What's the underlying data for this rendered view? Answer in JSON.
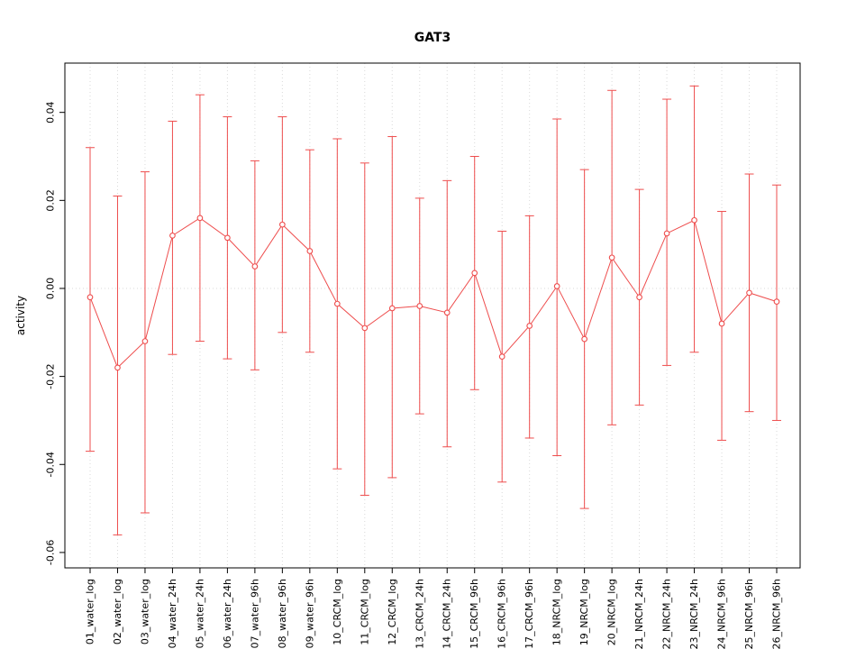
{
  "page": {
    "title": "GAT3"
  },
  "chart_data": {
    "type": "line",
    "title": "GAT3",
    "xlabel": "",
    "ylabel": "activity",
    "legend": "none",
    "point_style": "open-circle",
    "error_bars": true,
    "grid": {
      "vertical": "dotted line at every category",
      "horizontal": "dotted line at y=0"
    },
    "colors": {
      "series": "#ee4d4d",
      "grid": "#d9d9d9",
      "axis": "#000000",
      "background": "#ffffff"
    },
    "y_min": -0.0635,
    "y_max": 0.0512,
    "yticks": [
      -0.06,
      -0.04,
      -0.02,
      0,
      0.02,
      0.04
    ],
    "ytick_labels": [
      "-0.06",
      "-0.04",
      "-0.02",
      "0.00",
      "0.02",
      "0.04"
    ],
    "categories": [
      "01_water_log",
      "02_water_log",
      "03_water_log",
      "04_water_24h",
      "05_water_24h",
      "06_water_24h",
      "07_water_96h",
      "08_water_96h",
      "09_water_96h",
      "10_CRCM_log",
      "11_CRCM_log",
      "12_CRCM_log",
      "13_CRCM_24h",
      "14_CRCM_24h",
      "15_CRCM_96h",
      "16_CRCM_96h",
      "17_CRCM_96h",
      "18_NRCM_log",
      "19_NRCM_log",
      "20_NRCM_log",
      "21_NRCM_24h",
      "22_NRCM_24h",
      "23_NRCM_24h",
      "24_NRCM_96h",
      "25_NRCM_96h",
      "26_NRCM_96h"
    ],
    "series": [
      {
        "name": "activity",
        "center": [
          -0.002,
          -0.018,
          -0.012,
          0.012,
          0.016,
          0.0115,
          0.005,
          0.0145,
          0.0085,
          -0.0035,
          -0.009,
          -0.0045,
          -0.004,
          -0.0055,
          0.0035,
          -0.0155,
          -0.0085,
          0.0005,
          -0.0115,
          0.007,
          -0.002,
          0.0125,
          0.0155,
          -0.008,
          -0.001,
          -0.003
        ],
        "upper": [
          0.032,
          0.021,
          0.0265,
          0.038,
          0.044,
          0.039,
          0.029,
          0.039,
          0.0315,
          0.034,
          0.0285,
          0.0345,
          0.0205,
          0.0245,
          0.03,
          0.013,
          0.0165,
          0.0385,
          0.027,
          0.045,
          0.0225,
          0.043,
          0.046,
          0.0175,
          0.026,
          0.0235
        ],
        "lower": [
          -0.037,
          -0.056,
          -0.051,
          -0.015,
          -0.012,
          -0.016,
          -0.0185,
          -0.01,
          -0.0145,
          -0.041,
          -0.047,
          -0.043,
          -0.0285,
          -0.036,
          -0.023,
          -0.044,
          -0.034,
          -0.038,
          -0.05,
          -0.031,
          -0.0265,
          -0.0175,
          -0.0145,
          -0.0345,
          -0.028,
          -0.03
        ]
      }
    ]
  }
}
